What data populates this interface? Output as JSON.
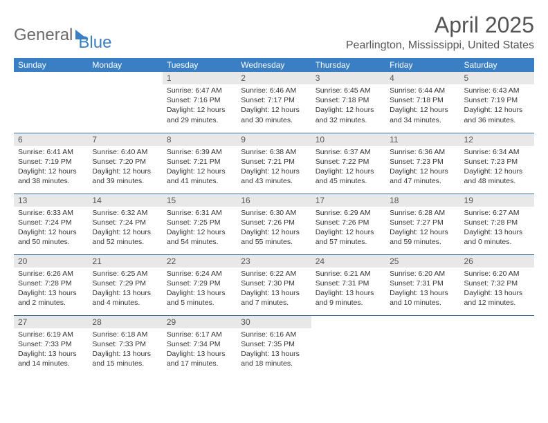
{
  "brand": {
    "part1": "General",
    "part2": "Blue"
  },
  "title": "April 2025",
  "location": "Pearlington, Mississippi, United States",
  "colors": {
    "header_bg": "#3a7fc4",
    "header_text": "#ffffff",
    "daynum_bg": "#e8e8e8",
    "row_border": "#3a6a9a",
    "text": "#333333",
    "title_text": "#555555"
  },
  "day_headers": [
    "Sunday",
    "Monday",
    "Tuesday",
    "Wednesday",
    "Thursday",
    "Friday",
    "Saturday"
  ],
  "weeks": [
    [
      null,
      null,
      {
        "n": "1",
        "sr": "6:47 AM",
        "ss": "7:16 PM",
        "dl": "12 hours and 29 minutes."
      },
      {
        "n": "2",
        "sr": "6:46 AM",
        "ss": "7:17 PM",
        "dl": "12 hours and 30 minutes."
      },
      {
        "n": "3",
        "sr": "6:45 AM",
        "ss": "7:18 PM",
        "dl": "12 hours and 32 minutes."
      },
      {
        "n": "4",
        "sr": "6:44 AM",
        "ss": "7:18 PM",
        "dl": "12 hours and 34 minutes."
      },
      {
        "n": "5",
        "sr": "6:43 AM",
        "ss": "7:19 PM",
        "dl": "12 hours and 36 minutes."
      }
    ],
    [
      {
        "n": "6",
        "sr": "6:41 AM",
        "ss": "7:19 PM",
        "dl": "12 hours and 38 minutes."
      },
      {
        "n": "7",
        "sr": "6:40 AM",
        "ss": "7:20 PM",
        "dl": "12 hours and 39 minutes."
      },
      {
        "n": "8",
        "sr": "6:39 AM",
        "ss": "7:21 PM",
        "dl": "12 hours and 41 minutes."
      },
      {
        "n": "9",
        "sr": "6:38 AM",
        "ss": "7:21 PM",
        "dl": "12 hours and 43 minutes."
      },
      {
        "n": "10",
        "sr": "6:37 AM",
        "ss": "7:22 PM",
        "dl": "12 hours and 45 minutes."
      },
      {
        "n": "11",
        "sr": "6:36 AM",
        "ss": "7:23 PM",
        "dl": "12 hours and 47 minutes."
      },
      {
        "n": "12",
        "sr": "6:34 AM",
        "ss": "7:23 PM",
        "dl": "12 hours and 48 minutes."
      }
    ],
    [
      {
        "n": "13",
        "sr": "6:33 AM",
        "ss": "7:24 PM",
        "dl": "12 hours and 50 minutes."
      },
      {
        "n": "14",
        "sr": "6:32 AM",
        "ss": "7:24 PM",
        "dl": "12 hours and 52 minutes."
      },
      {
        "n": "15",
        "sr": "6:31 AM",
        "ss": "7:25 PM",
        "dl": "12 hours and 54 minutes."
      },
      {
        "n": "16",
        "sr": "6:30 AM",
        "ss": "7:26 PM",
        "dl": "12 hours and 55 minutes."
      },
      {
        "n": "17",
        "sr": "6:29 AM",
        "ss": "7:26 PM",
        "dl": "12 hours and 57 minutes."
      },
      {
        "n": "18",
        "sr": "6:28 AM",
        "ss": "7:27 PM",
        "dl": "12 hours and 59 minutes."
      },
      {
        "n": "19",
        "sr": "6:27 AM",
        "ss": "7:28 PM",
        "dl": "13 hours and 0 minutes."
      }
    ],
    [
      {
        "n": "20",
        "sr": "6:26 AM",
        "ss": "7:28 PM",
        "dl": "13 hours and 2 minutes."
      },
      {
        "n": "21",
        "sr": "6:25 AM",
        "ss": "7:29 PM",
        "dl": "13 hours and 4 minutes."
      },
      {
        "n": "22",
        "sr": "6:24 AM",
        "ss": "7:29 PM",
        "dl": "13 hours and 5 minutes."
      },
      {
        "n": "23",
        "sr": "6:22 AM",
        "ss": "7:30 PM",
        "dl": "13 hours and 7 minutes."
      },
      {
        "n": "24",
        "sr": "6:21 AM",
        "ss": "7:31 PM",
        "dl": "13 hours and 9 minutes."
      },
      {
        "n": "25",
        "sr": "6:20 AM",
        "ss": "7:31 PM",
        "dl": "13 hours and 10 minutes."
      },
      {
        "n": "26",
        "sr": "6:20 AM",
        "ss": "7:32 PM",
        "dl": "13 hours and 12 minutes."
      }
    ],
    [
      {
        "n": "27",
        "sr": "6:19 AM",
        "ss": "7:33 PM",
        "dl": "13 hours and 14 minutes."
      },
      {
        "n": "28",
        "sr": "6:18 AM",
        "ss": "7:33 PM",
        "dl": "13 hours and 15 minutes."
      },
      {
        "n": "29",
        "sr": "6:17 AM",
        "ss": "7:34 PM",
        "dl": "13 hours and 17 minutes."
      },
      {
        "n": "30",
        "sr": "6:16 AM",
        "ss": "7:35 PM",
        "dl": "13 hours and 18 minutes."
      },
      null,
      null,
      null
    ]
  ],
  "labels": {
    "sunrise": "Sunrise:",
    "sunset": "Sunset:",
    "daylight": "Daylight:"
  }
}
